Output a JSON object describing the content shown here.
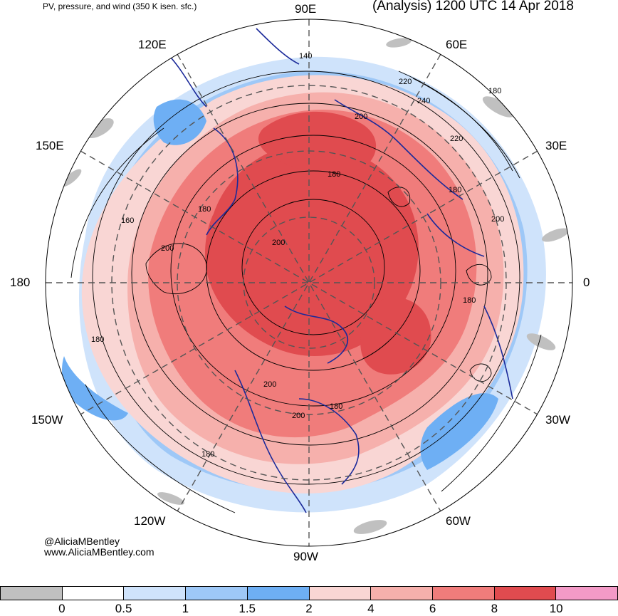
{
  "header": {
    "left_title": "PV, pressure, and wind (350 K isen. sfc.)",
    "right_title": "(Analysis) 1200 UTC 14 Apr 2018"
  },
  "longitudes": [
    "90E",
    "60E",
    "30E",
    "0",
    "30W",
    "60W",
    "90W",
    "120W",
    "150W",
    "180",
    "150E",
    "120E"
  ],
  "contour_labels": [
    "140",
    "220",
    "180",
    "240",
    "200",
    "220",
    "180",
    "200",
    "180",
    "160",
    "200",
    "200",
    "180",
    "200",
    "200",
    "180",
    "180",
    "180",
    "180"
  ],
  "credits": {
    "handle": "@AliciaMBentley",
    "website": "www.AliciaMBentley.com"
  },
  "colorbar": {
    "colors": [
      "#c0c0c0",
      "#ffffff",
      "#cfe3fb",
      "#9ec8f7",
      "#6eaff4",
      "#f9d6d4",
      "#f6b0ac",
      "#f07c7b",
      "#e04b4f",
      "#f39ac7"
    ],
    "ticks": [
      "0",
      "0.5",
      "1",
      "1.5",
      "2",
      "4",
      "6",
      "8",
      "10"
    ]
  },
  "fill_colors": {
    "pv_high": "#e04b4f",
    "pv_med": "#f07c7b",
    "pv_low": "#f6b0ac",
    "pv_faint": "#f9d6d4",
    "pv_blue": "#6eaff4",
    "pv_lightblue": "#9ec8f7",
    "coast": "#1b2a9a"
  }
}
